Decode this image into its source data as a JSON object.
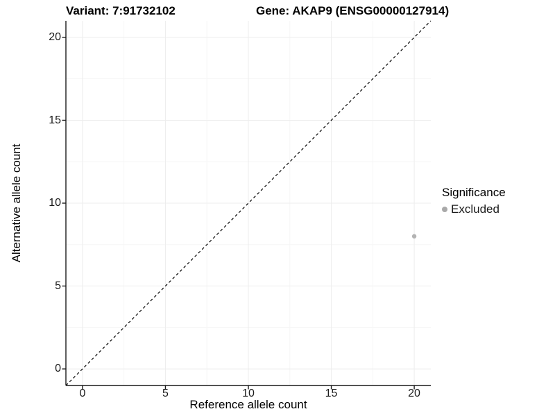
{
  "chart_data": {
    "type": "scatter",
    "titles": {
      "left": "Variant: 7:91732102",
      "right": "Gene: AKAP9 (ENSG00000127914)"
    },
    "xlabel": "Reference allele count",
    "ylabel": "Alternative allele count",
    "xlim": [
      -1,
      21
    ],
    "ylim": [
      -1,
      21
    ],
    "x_ticks": [
      "0",
      "5",
      "10",
      "15",
      "20"
    ],
    "y_ticks": [
      "0",
      "5",
      "10",
      "15",
      "20"
    ],
    "x_tick_values": [
      0,
      5,
      10,
      15,
      20
    ],
    "y_tick_values": [
      0,
      5,
      10,
      15,
      20
    ],
    "x_minor_values": [
      2.5,
      7.5,
      12.5,
      17.5
    ],
    "y_minor_values": [
      2.5,
      7.5,
      12.5,
      17.5
    ],
    "grid": {
      "on": true,
      "major_color": "#ededed",
      "minor_color": "#f6f6f6"
    },
    "identity_line": {
      "slope": 1,
      "intercept": 0,
      "style": "dashed",
      "color": "#000000"
    },
    "series": [
      {
        "name": "Excluded",
        "color": "#b3b3b3",
        "point_radius": 3.2,
        "points": [
          [
            20,
            8
          ]
        ]
      }
    ],
    "legend": {
      "title": "Significance",
      "position": "right",
      "items": [
        {
          "label": "Excluded",
          "color": "#a9a9a9"
        }
      ]
    },
    "axis_color": "#1a1a1a",
    "background": "#ffffff"
  }
}
